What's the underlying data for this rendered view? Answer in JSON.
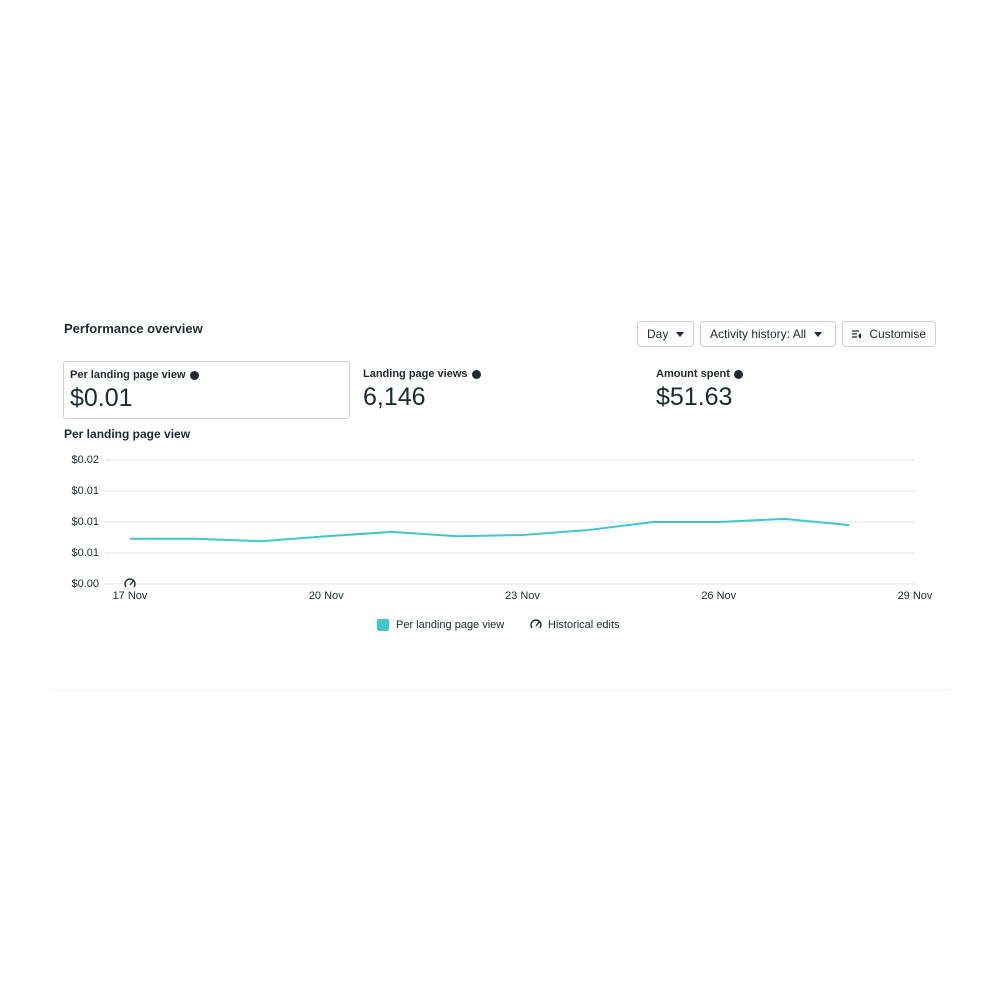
{
  "header": {
    "title": "Performance overview"
  },
  "controls": [
    "Day",
    "Activity history: All",
    "Customise"
  ],
  "metrics": [
    {
      "label": "Per landing page view",
      "value": "$0.01"
    },
    {
      "label": "Landing page views",
      "value": "6,146"
    },
    {
      "label": "Amount spent",
      "value": "$51.63"
    }
  ],
  "chart_data": {
    "type": "line",
    "title": "Per landing page view",
    "x": [
      17,
      18,
      19,
      20,
      21,
      22,
      23,
      24,
      25,
      26,
      27,
      28
    ],
    "xlim": [
      17,
      29
    ],
    "xticks": [
      {
        "value": 17,
        "label": "17 Nov"
      },
      {
        "value": 20,
        "label": "20 Nov"
      },
      {
        "value": 23,
        "label": "23 Nov"
      },
      {
        "value": 26,
        "label": "26 Nov"
      },
      {
        "value": 29,
        "label": "29 Nov"
      }
    ],
    "ylim": [
      0,
      0.02
    ],
    "yticks": [
      {
        "value": 0,
        "label": "$0.00"
      },
      {
        "value": 0.005,
        "label": "$0.01"
      },
      {
        "value": 0.01,
        "label": "$0.01"
      },
      {
        "value": 0.015,
        "label": "$0.01"
      },
      {
        "value": 0.02,
        "label": "$0.02"
      }
    ],
    "grid": true,
    "series": [
      {
        "name": "Per landing page view",
        "color": "#3ec9c6",
        "values": [
          0.0073,
          0.0073,
          0.0069,
          0.0077,
          0.0084,
          0.0077,
          0.0079,
          0.0087,
          0.01,
          0.01,
          0.0105,
          0.0095
        ]
      }
    ],
    "marker_legend": "Historical edits"
  }
}
